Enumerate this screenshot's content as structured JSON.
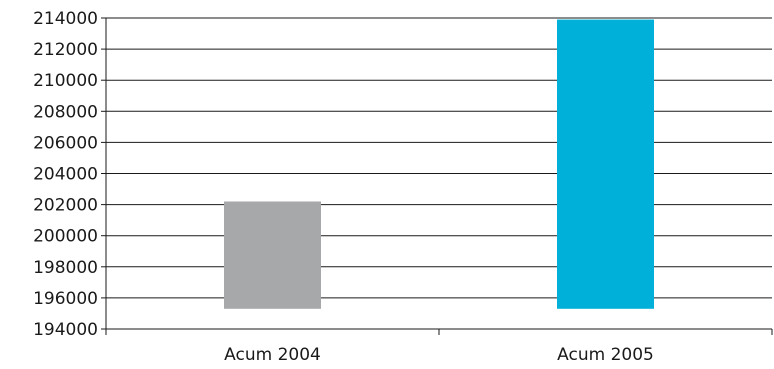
{
  "chart_data": {
    "type": "bar",
    "categories": [
      "Acum 2004",
      "Acum 2005"
    ],
    "values": [
      202200,
      213900
    ],
    "bar_base": 195300,
    "colors": [
      "#a6a8aa",
      "#00b0d8"
    ],
    "ylim": [
      194000,
      214000
    ],
    "y_ticks": [
      194000,
      196000,
      198000,
      200000,
      202000,
      204000,
      206000,
      208000,
      210000,
      212000,
      214000
    ],
    "y_tick_labels": [
      "194000",
      "196000",
      "198000",
      "200000",
      "202000",
      "204000",
      "206000",
      "208000",
      "210000",
      "212000",
      "214000"
    ],
    "grid": true,
    "legend": "none"
  }
}
